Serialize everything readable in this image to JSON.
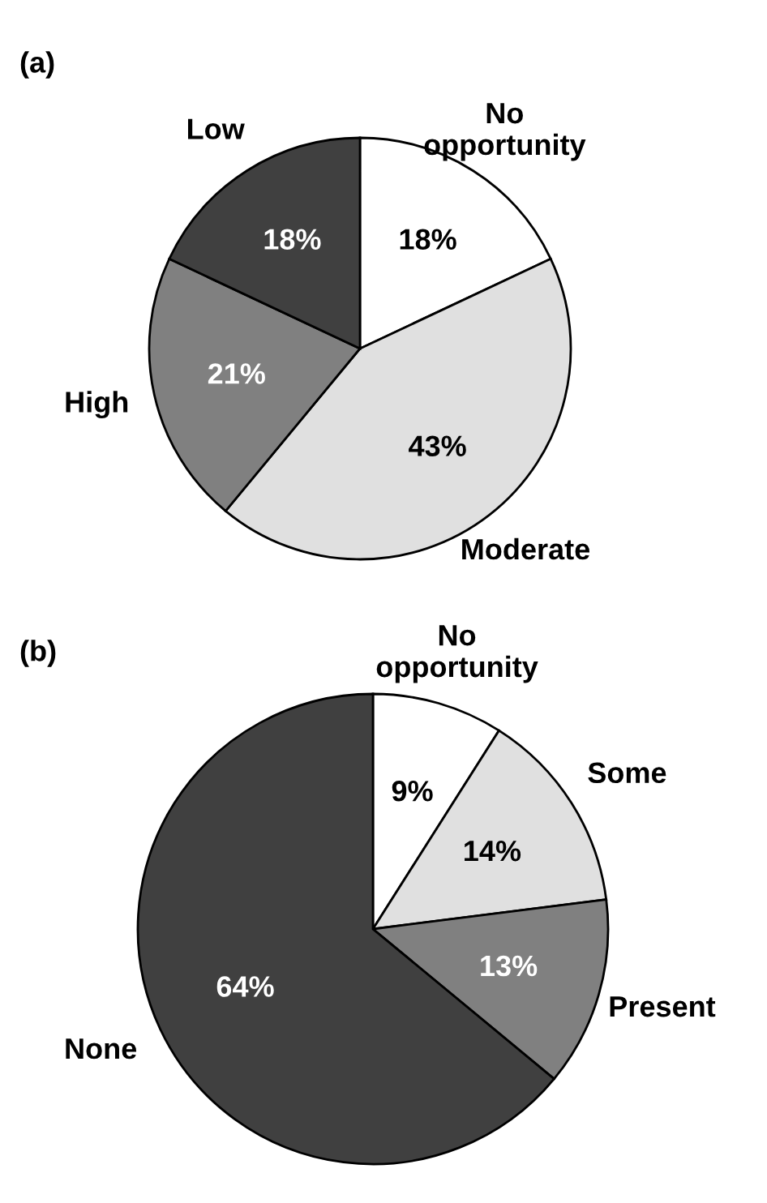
{
  "chart_data": [
    {
      "type": "pie",
      "title": "(a)",
      "categories": [
        "No\nopportunity",
        "Moderate",
        "High",
        "Low"
      ],
      "values": [
        18,
        43,
        21,
        18
      ],
      "colors": [
        "#ffffff",
        "#e0e0e0",
        "#808080",
        "#404040"
      ],
      "value_labels": [
        "18%",
        "43%",
        "21%",
        "18%"
      ],
      "legend": false
    },
    {
      "type": "pie",
      "title": "(b)",
      "categories": [
        "No\nopportunity",
        "Some",
        "Present",
        "None"
      ],
      "values": [
        9,
        14,
        13,
        64
      ],
      "colors": [
        "#ffffff",
        "#e0e0e0",
        "#808080",
        "#404040"
      ],
      "value_labels": [
        "9%",
        "14%",
        "13%",
        "64%"
      ],
      "legend": false
    }
  ]
}
